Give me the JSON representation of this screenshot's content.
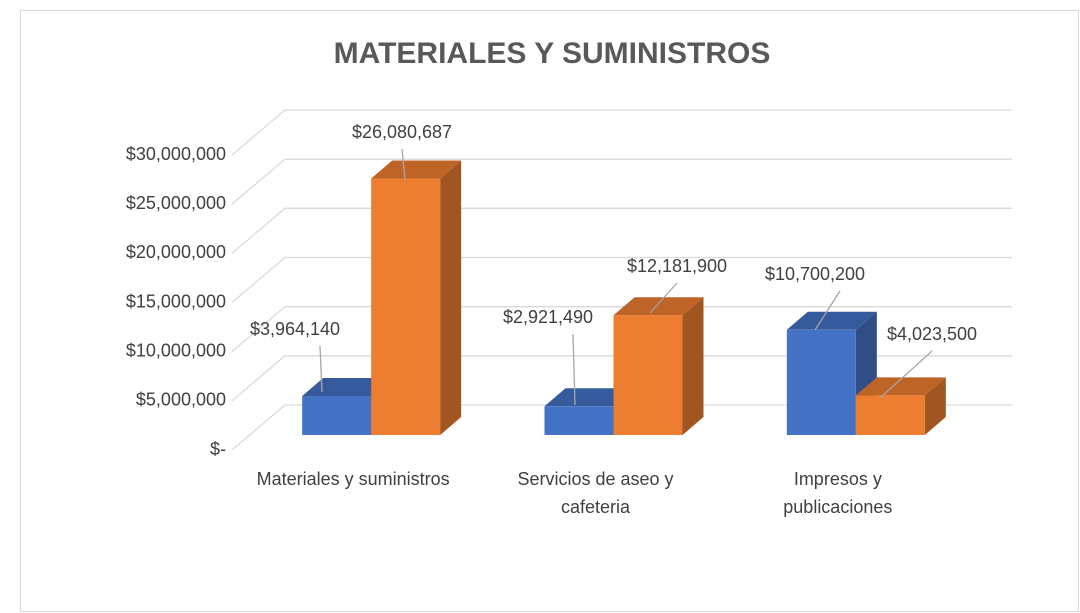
{
  "chart_data": {
    "type": "bar3d",
    "title": "MATERIALES Y SUMINISTROS",
    "categories": [
      "Materiales y suministros",
      "Servicios de aseo y cafeteria",
      "Impresos y publicaciones"
    ],
    "series": [
      {
        "color": "#4472c4",
        "values": [
          3964140,
          2921490,
          10700200
        ],
        "value_labels": [
          "$3,964,140",
          "$2,921,490",
          "$10,700,200"
        ]
      },
      {
        "color": "#ed7d31",
        "values": [
          26080687,
          12181900,
          4023500
        ],
        "value_labels": [
          "$26,080,687",
          "$12,181,900",
          "$4,023,500"
        ]
      }
    ],
    "ylim": [
      0,
      30000000
    ],
    "yticks": [
      {
        "value": 0,
        "label": "$-"
      },
      {
        "value": 5000000,
        "label": "$5,000,000"
      },
      {
        "value": 10000000,
        "label": "$10,000,000"
      },
      {
        "value": 15000000,
        "label": "$15,000,000"
      },
      {
        "value": 20000000,
        "label": "$20,000,000"
      },
      {
        "value": 25000000,
        "label": "$25,000,000"
      },
      {
        "value": 30000000,
        "label": "$30,000,000"
      }
    ],
    "grid": true
  }
}
